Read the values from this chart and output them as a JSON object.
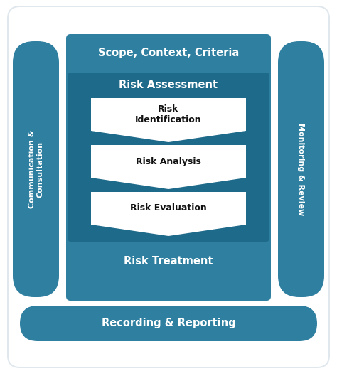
{
  "bg_color": "#ffffff",
  "teal": "#2E7FA0",
  "teal_darker": "#1E6A8A",
  "white": "#ffffff",
  "black": "#111111",
  "fig_width": 4.74,
  "fig_height": 5.36,
  "scope_text": "Scope, Context, Criteria",
  "risk_assessment_text": "Risk Assessment",
  "risk_id_text": "Risk\nIdentification",
  "risk_analysis_text": "Risk Analysis",
  "risk_eval_text": "Risk Evaluation",
  "risk_treatment_text": "Risk Treatment",
  "recording_text": "Recording & Reporting",
  "comm_text": "Communication &\nConsultation",
  "monitoring_text": "Monitoring & Review"
}
